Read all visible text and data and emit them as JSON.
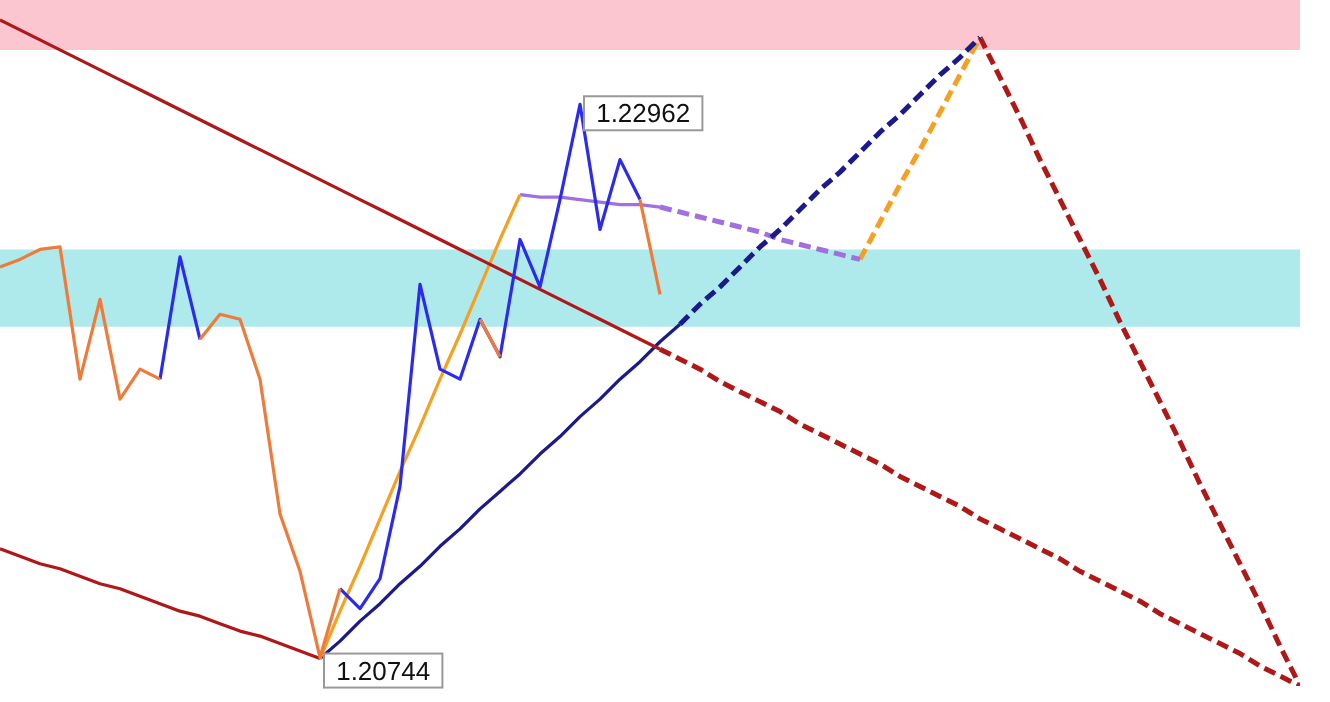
{
  "chart_data": {
    "type": "line",
    "marker": "none",
    "categories": [
      null,
      null,
      null,
      null,
      null,
      null,
      null,
      null,
      null,
      null,
      null,
      null,
      null,
      null,
      null,
      null,
      null,
      null,
      null,
      null,
      null,
      null,
      null,
      null,
      null,
      null,
      null,
      null,
      null,
      null,
      null,
      null,
      null,
      null,
      null,
      null,
      null,
      null,
      null,
      null,
      null,
      null,
      null,
      null,
      null,
      null,
      null,
      null,
      null,
      null,
      null,
      null,
      null,
      null,
      null,
      null,
      null,
      null,
      null,
      null,
      null,
      null,
      null,
      null,
      null,
      null
    ],
    "bands": [
      {
        "axis": "y",
        "from": 1.2318,
        "to": 1.2338,
        "color": "#fbc6d0"
      },
      {
        "axis": "y",
        "from": 1.2207,
        "to": 1.2238,
        "color": "#aee9ec"
      }
    ],
    "series": [
      {
        "color": "#f07a3a",
        "line_style": "solid",
        "values": [
          1.2231,
          1.2234,
          1.2238,
          1.2239,
          1.2186,
          1.2218,
          1.2178,
          1.219,
          1.2186,
          null,
          1.2202,
          1.2212,
          1.221,
          1.2186,
          1.2132,
          1.2109,
          1.20744,
          1.2102,
          null,
          null,
          null,
          null,
          null,
          null,
          1.221,
          1.2195,
          null,
          null,
          null,
          null,
          null,
          null,
          1.2258,
          1.222,
          null,
          null,
          null,
          null,
          null,
          null,
          null,
          null,
          null,
          null,
          null,
          null,
          null,
          null,
          null,
          null,
          null,
          null,
          null,
          null,
          null,
          null,
          null,
          null,
          null,
          null,
          null,
          null,
          null,
          null,
          null,
          null
        ],
        "value_labels": [
          null,
          null,
          null,
          null,
          null,
          null,
          null,
          null,
          null,
          null,
          null,
          null,
          null,
          null,
          null,
          null,
          "1.20744",
          null,
          null,
          null,
          null,
          null,
          null,
          null,
          null,
          null,
          null,
          null,
          null,
          null,
          null,
          null,
          null,
          null,
          null,
          null,
          null,
          null,
          null,
          null,
          null,
          null,
          null,
          null,
          null,
          null,
          null,
          null,
          null,
          null,
          null,
          null,
          null,
          null,
          null,
          null,
          null,
          null,
          null,
          null,
          null,
          null,
          null,
          null,
          null,
          null
        ]
      },
      {
        "color": "#2b2bf0",
        "line_style": "solid",
        "values": [
          null,
          null,
          null,
          null,
          null,
          null,
          null,
          null,
          1.2186,
          1.2235,
          1.2202,
          null,
          null,
          null,
          null,
          null,
          null,
          1.2102,
          1.2094,
          1.2106,
          1.2143,
          1.2224,
          1.219,
          1.2186,
          1.221,
          1.2195,
          1.2242,
          1.2223,
          1.2258,
          1.22962,
          1.2246,
          1.2274,
          1.2258,
          null,
          null,
          null,
          null,
          null,
          null,
          null,
          null,
          null,
          null,
          null,
          null,
          null,
          null,
          null,
          null,
          null,
          null,
          null,
          null,
          null,
          null,
          null,
          null,
          null,
          null,
          null,
          null,
          null,
          null,
          null,
          null,
          null
        ],
        "value_labels": [
          null,
          null,
          null,
          null,
          null,
          null,
          null,
          null,
          null,
          null,
          null,
          null,
          null,
          null,
          null,
          null,
          null,
          null,
          null,
          null,
          null,
          null,
          null,
          null,
          null,
          null,
          null,
          null,
          null,
          "1.22962",
          null,
          null,
          null,
          null,
          null,
          null,
          null,
          null,
          null,
          null,
          null,
          null,
          null,
          null,
          null,
          null,
          null,
          null,
          null,
          null,
          null,
          null,
          null,
          null,
          null,
          null,
          null,
          null,
          null,
          null,
          null,
          null,
          null,
          null,
          null,
          null
        ]
      },
      {
        "color": "#b01818",
        "line_style": "solid",
        "values": [
          1.233,
          1.2326,
          1.2322,
          1.2318,
          1.2314,
          1.231,
          1.2306,
          1.2302,
          1.2298,
          1.2294,
          1.229,
          1.2286,
          1.2282,
          1.2278,
          1.2274,
          1.227,
          1.2266,
          1.2262,
          1.2258,
          1.2254,
          1.225,
          1.2246,
          1.2242,
          1.2238,
          1.2234,
          1.223,
          1.2226,
          1.2222,
          1.2218,
          1.2214,
          1.221,
          1.2206,
          1.2202,
          1.2198,
          null,
          null,
          null,
          null,
          null,
          null,
          null,
          null,
          null,
          null,
          null,
          null,
          null,
          null,
          null,
          null,
          null,
          null,
          null,
          null,
          null,
          null,
          null,
          null,
          null,
          null,
          null,
          null,
          null,
          null,
          null,
          null
        ]
      },
      {
        "color": "#b01818",
        "line_style": "dashed",
        "values": [
          null,
          null,
          null,
          null,
          null,
          null,
          null,
          null,
          null,
          null,
          null,
          null,
          null,
          null,
          null,
          null,
          null,
          null,
          null,
          null,
          null,
          null,
          null,
          null,
          null,
          null,
          null,
          null,
          null,
          null,
          null,
          null,
          null,
          1.2198,
          1.2194,
          1.219,
          1.2185,
          1.2181,
          1.2177,
          1.2173,
          1.2168,
          1.2164,
          1.216,
          1.2156,
          1.2152,
          1.2147,
          1.2143,
          1.2139,
          1.2135,
          1.213,
          1.2126,
          1.2122,
          1.2118,
          1.2114,
          1.2109,
          1.2105,
          1.2101,
          1.2097,
          1.2092,
          1.2088,
          1.2084,
          1.208,
          1.2076,
          1.2071,
          1.2067,
          1.2063
        ]
      },
      {
        "color": "#b01818",
        "line_style": "solid",
        "values": [
          1.2118,
          1.2115,
          1.2112,
          1.211,
          1.2107,
          1.2104,
          1.2102,
          1.2099,
          1.2096,
          1.2093,
          1.2091,
          1.2088,
          1.2085,
          1.2083,
          1.208,
          1.2077,
          1.2074,
          null,
          null,
          null,
          null,
          null,
          null,
          null,
          null,
          null,
          null,
          null,
          null,
          null,
          null,
          null,
          null,
          null,
          null,
          null,
          null,
          null,
          null,
          null,
          null,
          null,
          null,
          null,
          null,
          null,
          null,
          null,
          null,
          null,
          null,
          null,
          null,
          null,
          null,
          null,
          null,
          null,
          null,
          null,
          null,
          null,
          null,
          null,
          null,
          null
        ]
      },
      {
        "color": "#f5a020",
        "line_style": "solid",
        "values": [
          null,
          null,
          null,
          null,
          null,
          null,
          null,
          null,
          null,
          null,
          null,
          null,
          null,
          null,
          null,
          null,
          1.2074,
          1.2093,
          1.2111,
          1.213,
          1.2149,
          1.2167,
          1.2186,
          1.2204,
          1.2223,
          1.2242,
          1.226,
          null,
          null,
          null,
          null,
          null,
          null,
          null,
          null,
          null,
          null,
          null,
          null,
          null,
          null,
          null,
          null,
          null,
          null,
          null,
          null,
          null,
          null,
          null,
          null,
          null,
          null,
          null,
          null,
          null,
          null,
          null,
          null,
          null,
          null,
          null,
          null,
          null,
          null,
          null
        ]
      },
      {
        "color": "#1a1a8c",
        "line_style": "solid",
        "values": [
          null,
          null,
          null,
          null,
          null,
          null,
          null,
          null,
          null,
          null,
          null,
          null,
          null,
          null,
          null,
          null,
          1.2074,
          1.2081,
          1.2089,
          1.2096,
          1.2104,
          1.2111,
          1.2119,
          1.2126,
          1.2134,
          1.2141,
          1.2148,
          1.2156,
          1.2163,
          1.2171,
          1.2178,
          1.2186,
          1.2193,
          1.2201,
          1.2208,
          null,
          null,
          null,
          null,
          null,
          null,
          null,
          null,
          null,
          null,
          null,
          null,
          null,
          null,
          null,
          null,
          null,
          null,
          null,
          null,
          null,
          null,
          null,
          null,
          null,
          null,
          null,
          null,
          null,
          null,
          null
        ]
      },
      {
        "color": "#1a1a8c",
        "line_style": "dashed",
        "values": [
          null,
          null,
          null,
          null,
          null,
          null,
          null,
          null,
          null,
          null,
          null,
          null,
          null,
          null,
          null,
          null,
          null,
          null,
          null,
          null,
          null,
          null,
          null,
          null,
          null,
          null,
          null,
          null,
          null,
          null,
          null,
          null,
          null,
          null,
          1.2208,
          1.2216,
          1.2223,
          1.2231,
          1.2239,
          1.2246,
          1.2254,
          1.2262,
          1.2269,
          1.2277,
          1.2285,
          1.2292,
          1.23,
          1.2308,
          1.2315,
          1.2323,
          null,
          null,
          null,
          null,
          null,
          null,
          null,
          null,
          null,
          null,
          null,
          null,
          null,
          null,
          null,
          null
        ]
      },
      {
        "color": "#a070e0",
        "line_style": "solid",
        "values": [
          null,
          null,
          null,
          null,
          null,
          null,
          null,
          null,
          null,
          null,
          null,
          null,
          null,
          null,
          null,
          null,
          null,
          null,
          null,
          null,
          null,
          null,
          null,
          null,
          null,
          null,
          1.226,
          1.2259,
          1.2259,
          1.2258,
          1.2257,
          1.2256,
          1.2256,
          1.2255,
          null,
          null,
          null,
          null,
          null,
          null,
          null,
          null,
          null,
          null,
          null,
          null,
          null,
          null,
          null,
          null,
          null,
          null,
          null,
          null,
          null,
          null,
          null,
          null,
          null,
          null,
          null,
          null,
          null,
          null,
          null,
          null
        ]
      },
      {
        "color": "#a070e0",
        "line_style": "dashed",
        "values": [
          null,
          null,
          null,
          null,
          null,
          null,
          null,
          null,
          null,
          null,
          null,
          null,
          null,
          null,
          null,
          null,
          null,
          null,
          null,
          null,
          null,
          null,
          null,
          null,
          null,
          null,
          null,
          null,
          null,
          null,
          null,
          null,
          null,
          1.2255,
          1.2253,
          1.2251,
          1.2249,
          1.2247,
          1.2245,
          1.2242,
          1.224,
          1.2238,
          1.2236,
          1.2234,
          null,
          null,
          null,
          null,
          null,
          null,
          null,
          null,
          null,
          null,
          null,
          null,
          null,
          null,
          null,
          null,
          null,
          null,
          null,
          null,
          null,
          null
        ]
      },
      {
        "color": "#f5a020",
        "line_style": "dashed",
        "values": [
          null,
          null,
          null,
          null,
          null,
          null,
          null,
          null,
          null,
          null,
          null,
          null,
          null,
          null,
          null,
          null,
          null,
          null,
          null,
          null,
          null,
          null,
          null,
          null,
          null,
          null,
          null,
          null,
          null,
          null,
          null,
          null,
          null,
          null,
          null,
          null,
          null,
          null,
          null,
          null,
          null,
          null,
          null,
          1.2234,
          1.2249,
          1.2264,
          1.2278,
          1.2293,
          1.2308,
          1.2323,
          null,
          null,
          null,
          null,
          null,
          null,
          null,
          null,
          null,
          null,
          null,
          null,
          null,
          null,
          null,
          null
        ]
      },
      {
        "color": "#b01818",
        "line_style": "dashed",
        "values": [
          null,
          null,
          null,
          null,
          null,
          null,
          null,
          null,
          null,
          null,
          null,
          null,
          null,
          null,
          null,
          null,
          null,
          null,
          null,
          null,
          null,
          null,
          null,
          null,
          null,
          null,
          null,
          null,
          null,
          null,
          null,
          null,
          null,
          null,
          null,
          null,
          null,
          null,
          null,
          null,
          null,
          null,
          null,
          null,
          null,
          null,
          null,
          null,
          null,
          1.2323,
          1.2307,
          1.2291,
          1.2274,
          1.2258,
          1.2242,
          1.2226,
          1.2209,
          1.2193,
          1.2177,
          1.2161,
          1.2144,
          1.2128,
          1.2112,
          1.2096,
          1.2079,
          1.2063
        ]
      }
    ]
  }
}
